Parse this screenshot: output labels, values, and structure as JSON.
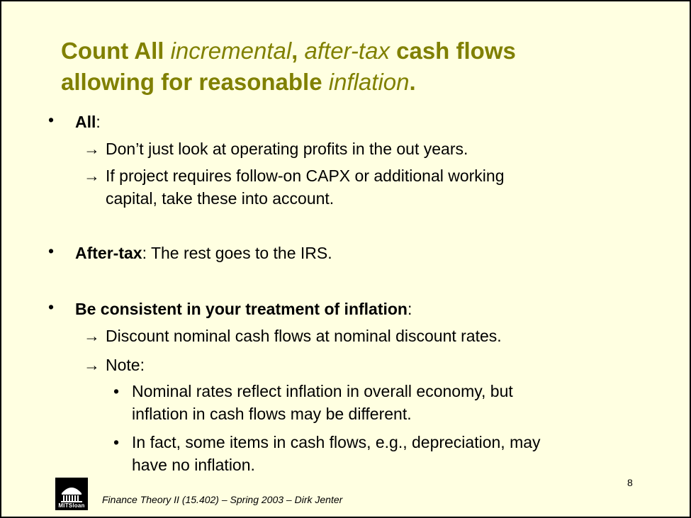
{
  "title": {
    "l1a": "Count All ",
    "l1b": "incremental",
    "l1c": ", ",
    "l1d": "after-tax",
    "l1e": " cash flows",
    "l2a": "allowing for reasonable ",
    "l2b": "inflation",
    "l2c": "."
  },
  "bullets": {
    "bullet_char": "•",
    "arrow_char": "→",
    "all": {
      "label": "All",
      "colon": ":",
      "sub1": "Don’t just look at operating profits in the out years.",
      "sub2_l1": "If project requires follow-on CAPX or additional working",
      "sub2_l2": "capital, take these into account."
    },
    "aftertax": {
      "label": "After-tax",
      "colon": ":",
      "text": " The rest goes to the IRS."
    },
    "consistent": {
      "label": "Be consistent in your treatment of inflation",
      "colon": ":",
      "sub1": "Discount nominal cash flows at nominal discount rates.",
      "sub2": "Note:",
      "subsub1_l1": "Nominal rates reflect inflation in overall economy, but",
      "subsub1_l2": "inflation in cash flows may be different.",
      "subsub2_l1": "In fact, some items in cash flows, e.g., depreciation, may",
      "subsub2_l2": "have no inflation."
    }
  },
  "page_number": "8",
  "footer": "Finance Theory II (15.402) – Spring 2003 – Dirk Jenter",
  "logo": {
    "label": "MITSloan",
    "icon": "mit-dome-icon"
  },
  "colors": {
    "background": "#ffffe1",
    "title": "#808000",
    "text": "#000000"
  }
}
